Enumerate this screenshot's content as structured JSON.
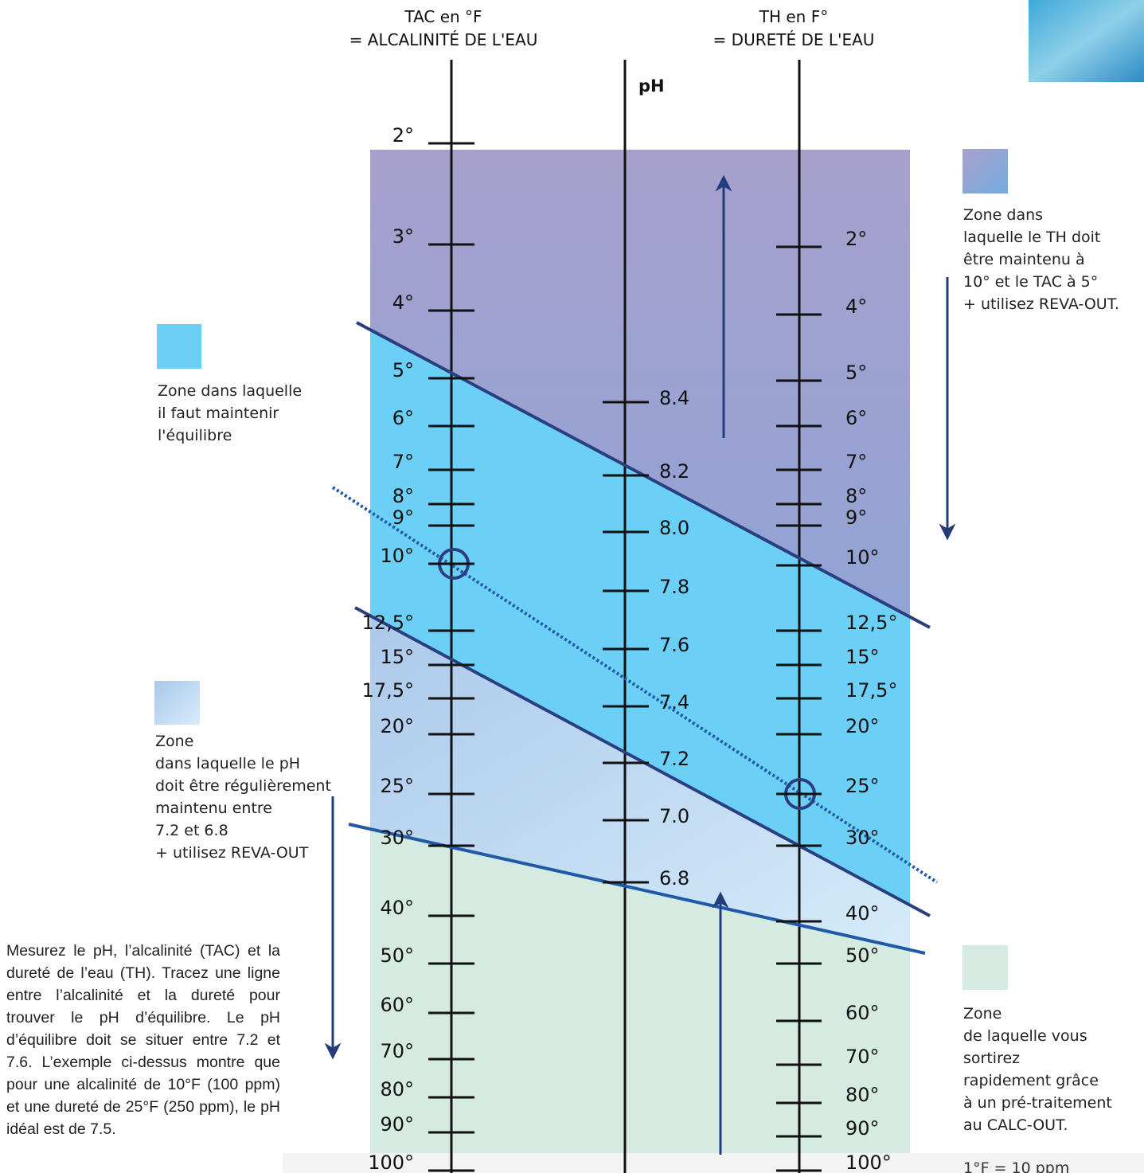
{
  "axes": {
    "tac": {
      "title": [
        "TAC en °F",
        "= ALCALINITÉ DE L'EAU"
      ],
      "ticks": [
        "2°",
        "3°",
        "4°",
        "5°",
        "6°",
        "7°",
        "8°",
        "9°",
        "10°",
        "12,5°",
        "15°",
        "17,5°",
        "20°",
        "25°",
        "30°",
        "40°",
        "50°",
        "60°",
        "70°",
        "80°",
        "90°",
        "100°"
      ]
    },
    "ph": {
      "title": "pH",
      "ticks": [
        "8.4",
        "8.2",
        "8.0",
        "7.8",
        "7.6",
        "7.4",
        "7.2",
        "7.0",
        "6.8"
      ]
    },
    "th": {
      "title": [
        "TH en F°",
        "= DURETÉ DE L'EAU"
      ],
      "ticks": [
        "2°",
        "4°",
        "5°",
        "6°",
        "7°",
        "8°",
        "9°",
        "10°",
        "12,5°",
        "15°",
        "17,5°",
        "20°",
        "25°",
        "30°",
        "40°",
        "50°",
        "60°",
        "70°",
        "80°",
        "90°",
        "100°"
      ]
    }
  },
  "legend": [
    {
      "lines": [
        "Zone dans",
        "laquelle le TH doit",
        "être maintenu à",
        "10° et le TAC à 5°",
        "+ utilisez REVA-OUT."
      ]
    },
    {
      "lines": [
        "Zone dans laquelle",
        "il faut maintenir",
        "l'équilibre"
      ]
    },
    {
      "lines": [
        "Zone",
        "dans laquelle le pH",
        "doit être régulièrement",
        "maintenu entre",
        "7.2 et 6.8",
        "+ utilisez REVA-OUT"
      ]
    },
    {
      "lines": [
        "Zone",
        "de laquelle vous",
        "sortirez",
        "rapidement grâce",
        "à un pré-traitement",
        "au CALC-OUT."
      ]
    }
  ],
  "note": "Mesurez le pH, l’alcalinité (TAC) et la dureté de l’eau (TH). Tracez une ligne entre l’alcalinité et la dureté pour trouver le pH d’équilibre. Le pH d’équilibre doit se situer entre 7.2 et 7.6. L’exemple ci-dessus montre que pour une alcalinité de 10°F (100 ppm) et une dureté de 25°F (250 ppm), le pH idéal est de 7.5.",
  "footer": "1°F = 10 ppm"
}
